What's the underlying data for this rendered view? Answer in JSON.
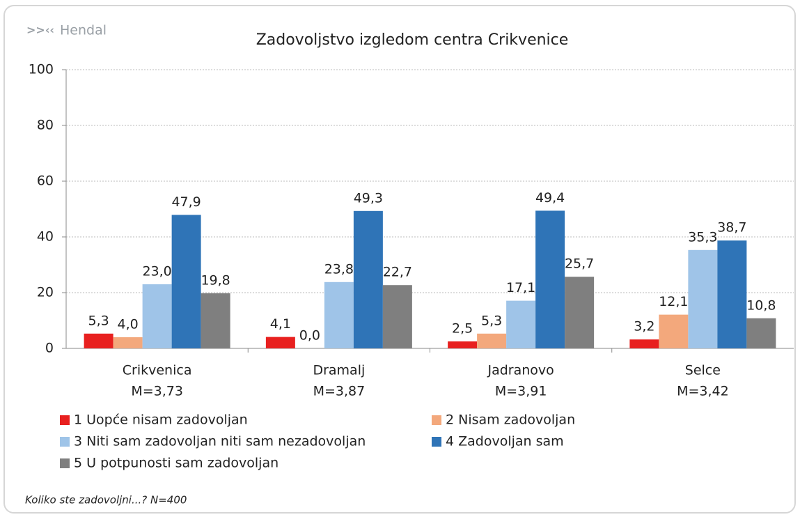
{
  "brand": "Hendal",
  "footnote": "Koliko ste zadovoljni...? N=400",
  "chart_data": {
    "type": "bar",
    "title": "Zadovoljstvo izgledom centra Crikvenice",
    "categories": [
      "Crikvenica",
      "Dramalj",
      "Jadranovo",
      "Selce"
    ],
    "category_means": [
      "M=3,73",
      "M=3,87",
      "M=3,91",
      "M=3,42"
    ],
    "ylim": [
      0,
      100
    ],
    "yticks": [
      0,
      20,
      40,
      60,
      80,
      100
    ],
    "grid": true,
    "series": [
      {
        "name": "1 Uopće nisam zadovoljan",
        "color": "#e8201f",
        "values": [
          5.3,
          4.1,
          2.5,
          3.2
        ],
        "value_labels": [
          "5,3",
          "4,1",
          "2,5",
          "3,2"
        ]
      },
      {
        "name": "2 Nisam zadovoljan",
        "color": "#f3a87c",
        "values": [
          4.0,
          0.0,
          5.3,
          12.1
        ],
        "value_labels": [
          "4,0",
          "0,0",
          "5,3",
          "12,1"
        ]
      },
      {
        "name": "3 Niti sam zadovoljan niti sam nezadovoljan",
        "color": "#9fc4e8",
        "values": [
          23.0,
          23.8,
          17.1,
          35.3
        ],
        "value_labels": [
          "23,0",
          "23,8",
          "17,1",
          "35,3"
        ]
      },
      {
        "name": "4 Zadovoljan sam",
        "color": "#2f74b7",
        "values": [
          47.9,
          49.3,
          49.4,
          38.7
        ],
        "value_labels": [
          "47,9",
          "49,3",
          "49,4",
          "38,7"
        ]
      },
      {
        "name": "5 U potpunosti sam zadovoljan",
        "color": "#7f7f7f",
        "values": [
          19.8,
          22.7,
          25.7,
          10.8
        ],
        "value_labels": [
          "19,8",
          "22,7",
          "25,7",
          "10,8"
        ]
      }
    ]
  }
}
